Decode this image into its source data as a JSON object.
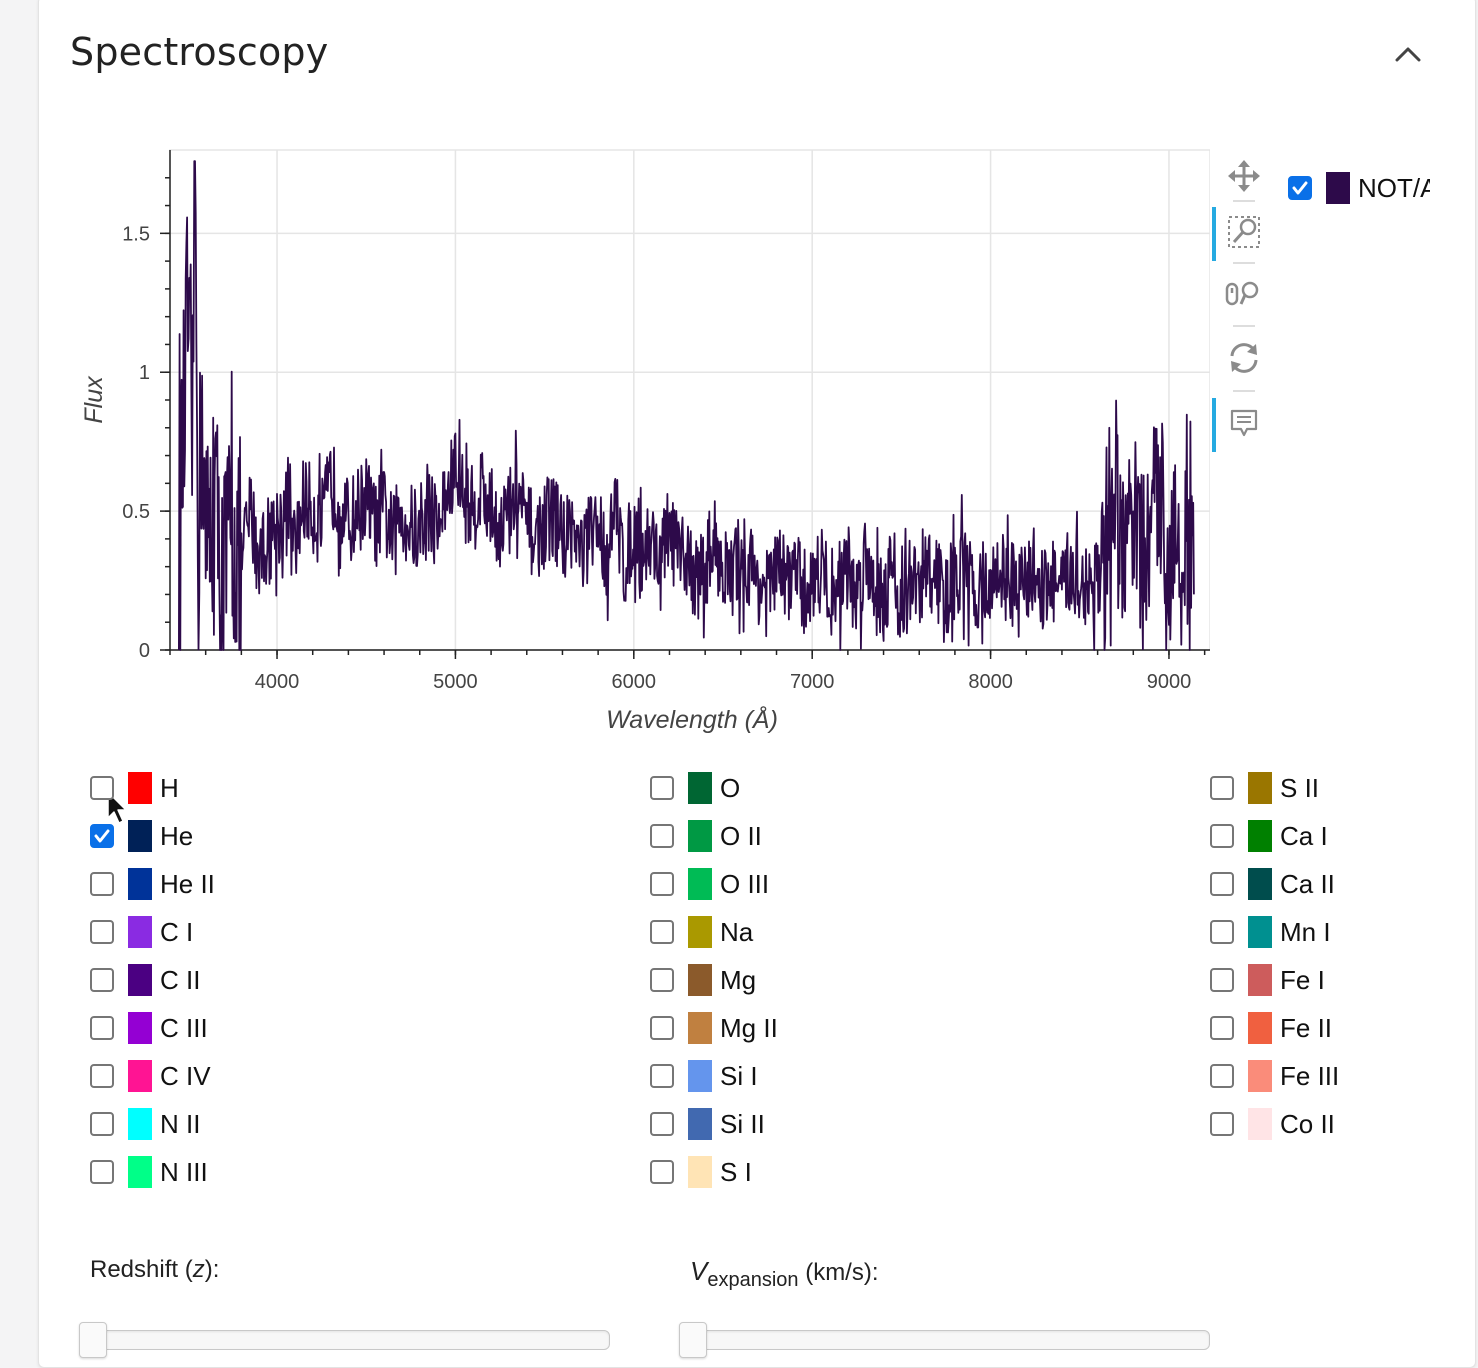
{
  "card": {
    "title": "Spectroscopy"
  },
  "legend": {
    "label": "NOT/ALFOSC",
    "checked": true,
    "color": "#2d0a4a"
  },
  "chart_data": {
    "type": "line",
    "xlabel": "Wavelength (Å)",
    "ylabel": "Flux",
    "xlim": [
      3400,
      9230
    ],
    "ylim": [
      0,
      1.8
    ],
    "xticks": [
      4000,
      5000,
      6000,
      7000,
      8000,
      9000
    ],
    "yticks": [
      0,
      0.5,
      1,
      1.5
    ],
    "ytick_labels": [
      "0",
      "0.5",
      "1",
      "1.5"
    ],
    "grid": true,
    "series": [
      {
        "name": "NOT/ALFOSC",
        "color": "#2d0a4a",
        "x": [
          3450,
          3480,
          3500,
          3520,
          3540,
          3560,
          3580,
          3600,
          3650,
          3700,
          3750,
          3800,
          3850,
          3900,
          3950,
          4000,
          4050,
          4100,
          4150,
          4200,
          4250,
          4300,
          4350,
          4400,
          4450,
          4500,
          4550,
          4600,
          4650,
          4700,
          4750,
          4800,
          4850,
          4900,
          4950,
          5000,
          5050,
          5100,
          5150,
          5200,
          5250,
          5300,
          5350,
          5400,
          5450,
          5500,
          5550,
          5600,
          5650,
          5700,
          5750,
          5800,
          5850,
          5900,
          5950,
          6000,
          6050,
          6100,
          6150,
          6200,
          6250,
          6300,
          6350,
          6400,
          6450,
          6500,
          6550,
          6600,
          6650,
          6700,
          6750,
          6800,
          6850,
          6900,
          6950,
          7000,
          7050,
          7100,
          7150,
          7200,
          7250,
          7300,
          7350,
          7400,
          7450,
          7500,
          7550,
          7600,
          7650,
          7700,
          7750,
          7800,
          7850,
          7900,
          7950,
          8000,
          8050,
          8100,
          8150,
          8200,
          8250,
          8300,
          8350,
          8400,
          8450,
          8500,
          8550,
          8600,
          8650,
          8700,
          8750,
          8800,
          8850,
          8900,
          8950,
          9000,
          9050,
          9100,
          9140
        ],
        "y": [
          0.35,
          0.85,
          1.25,
          0.55,
          1.75,
          0.4,
          0.9,
          0.35,
          0.5,
          0.25,
          0.45,
          0.3,
          0.5,
          0.35,
          0.4,
          0.45,
          0.5,
          0.35,
          0.55,
          0.5,
          0.45,
          0.6,
          0.55,
          0.45,
          0.5,
          0.55,
          0.45,
          0.5,
          0.4,
          0.5,
          0.45,
          0.4,
          0.5,
          0.45,
          0.55,
          0.65,
          0.55,
          0.5,
          0.6,
          0.5,
          0.45,
          0.5,
          0.55,
          0.45,
          0.4,
          0.45,
          0.5,
          0.4,
          0.45,
          0.35,
          0.4,
          0.45,
          0.35,
          0.5,
          0.3,
          0.45,
          0.35,
          0.4,
          0.3,
          0.45,
          0.3,
          0.35,
          0.25,
          0.3,
          0.4,
          0.3,
          0.25,
          0.35,
          0.3,
          0.25,
          0.2,
          0.3,
          0.25,
          0.3,
          0.2,
          0.25,
          0.3,
          0.2,
          0.25,
          0.3,
          0.2,
          0.35,
          0.25,
          0.2,
          0.3,
          0.15,
          0.25,
          0.2,
          0.3,
          0.25,
          0.2,
          0.25,
          0.3,
          0.2,
          0.25,
          0.2,
          0.3,
          0.25,
          0.2,
          0.25,
          0.3,
          0.2,
          0.25,
          0.2,
          0.3,
          0.25,
          0.2,
          0.3,
          0.25,
          0.4,
          0.35,
          0.5,
          0.3,
          0.45,
          0.6,
          0.3,
          0.5,
          0.35,
          0.2
        ]
      }
    ]
  },
  "toolbar": {
    "tools": [
      {
        "name": "pan-icon",
        "active": false
      },
      {
        "name": "box-zoom-icon",
        "active": true
      },
      {
        "name": "wheel-zoom-icon",
        "active": false
      },
      {
        "name": "reset-icon",
        "active": false
      },
      {
        "name": "hover-tooltip-icon",
        "active": true
      }
    ]
  },
  "lines": {
    "columns": [
      [
        {
          "label": "H",
          "color": "#ff0000",
          "checked": false
        },
        {
          "label": "He",
          "color": "#002157",
          "checked": true
        },
        {
          "label": "He II",
          "color": "#003399",
          "checked": false
        },
        {
          "label": "C I",
          "color": "#8a2be2",
          "checked": false
        },
        {
          "label": "C II",
          "color": "#4b0082",
          "checked": false
        },
        {
          "label": "C III",
          "color": "#9400d3",
          "checked": false
        },
        {
          "label": "C IV",
          "color": "#ff1493",
          "checked": false
        },
        {
          "label": "N II",
          "color": "#00ffff",
          "checked": false
        },
        {
          "label": "N III",
          "color": "#00ff88",
          "checked": false
        }
      ],
      [
        {
          "label": "O",
          "color": "#006633",
          "checked": false
        },
        {
          "label": "O II",
          "color": "#009944",
          "checked": false
        },
        {
          "label": "O III",
          "color": "#00bb55",
          "checked": false
        },
        {
          "label": "Na",
          "color": "#aa9900",
          "checked": false
        },
        {
          "label": "Mg",
          "color": "#8b5a2b",
          "checked": false
        },
        {
          "label": "Mg II",
          "color": "#c08040",
          "checked": false
        },
        {
          "label": "Si I",
          "color": "#6495ed",
          "checked": false
        },
        {
          "label": "Si II",
          "color": "#4169b0",
          "checked": false
        },
        {
          "label": "S I",
          "color": "#ffe4b5",
          "checked": false
        }
      ],
      [
        {
          "label": "S II",
          "color": "#9a7600",
          "checked": false
        },
        {
          "label": "Ca I",
          "color": "#008000",
          "checked": false
        },
        {
          "label": "Ca II",
          "color": "#004d4d",
          "checked": false
        },
        {
          "label": "Mn I",
          "color": "#009090",
          "checked": false
        },
        {
          "label": "Fe I",
          "color": "#cd5c5c",
          "checked": false
        },
        {
          "label": "Fe II",
          "color": "#f06040",
          "checked": false
        },
        {
          "label": "Fe III",
          "color": "#fa8c7a",
          "checked": false
        },
        {
          "label": "Co II",
          "color": "#ffe4e6",
          "checked": false
        }
      ]
    ]
  },
  "sliders": {
    "redshift": {
      "label_main": "Redshift (",
      "label_var": "z",
      "label_end": "):",
      "value": 0
    },
    "vexp": {
      "label_var": "V",
      "label_sub": "expansion",
      "label_end": " (km/s):",
      "value": 0
    }
  }
}
